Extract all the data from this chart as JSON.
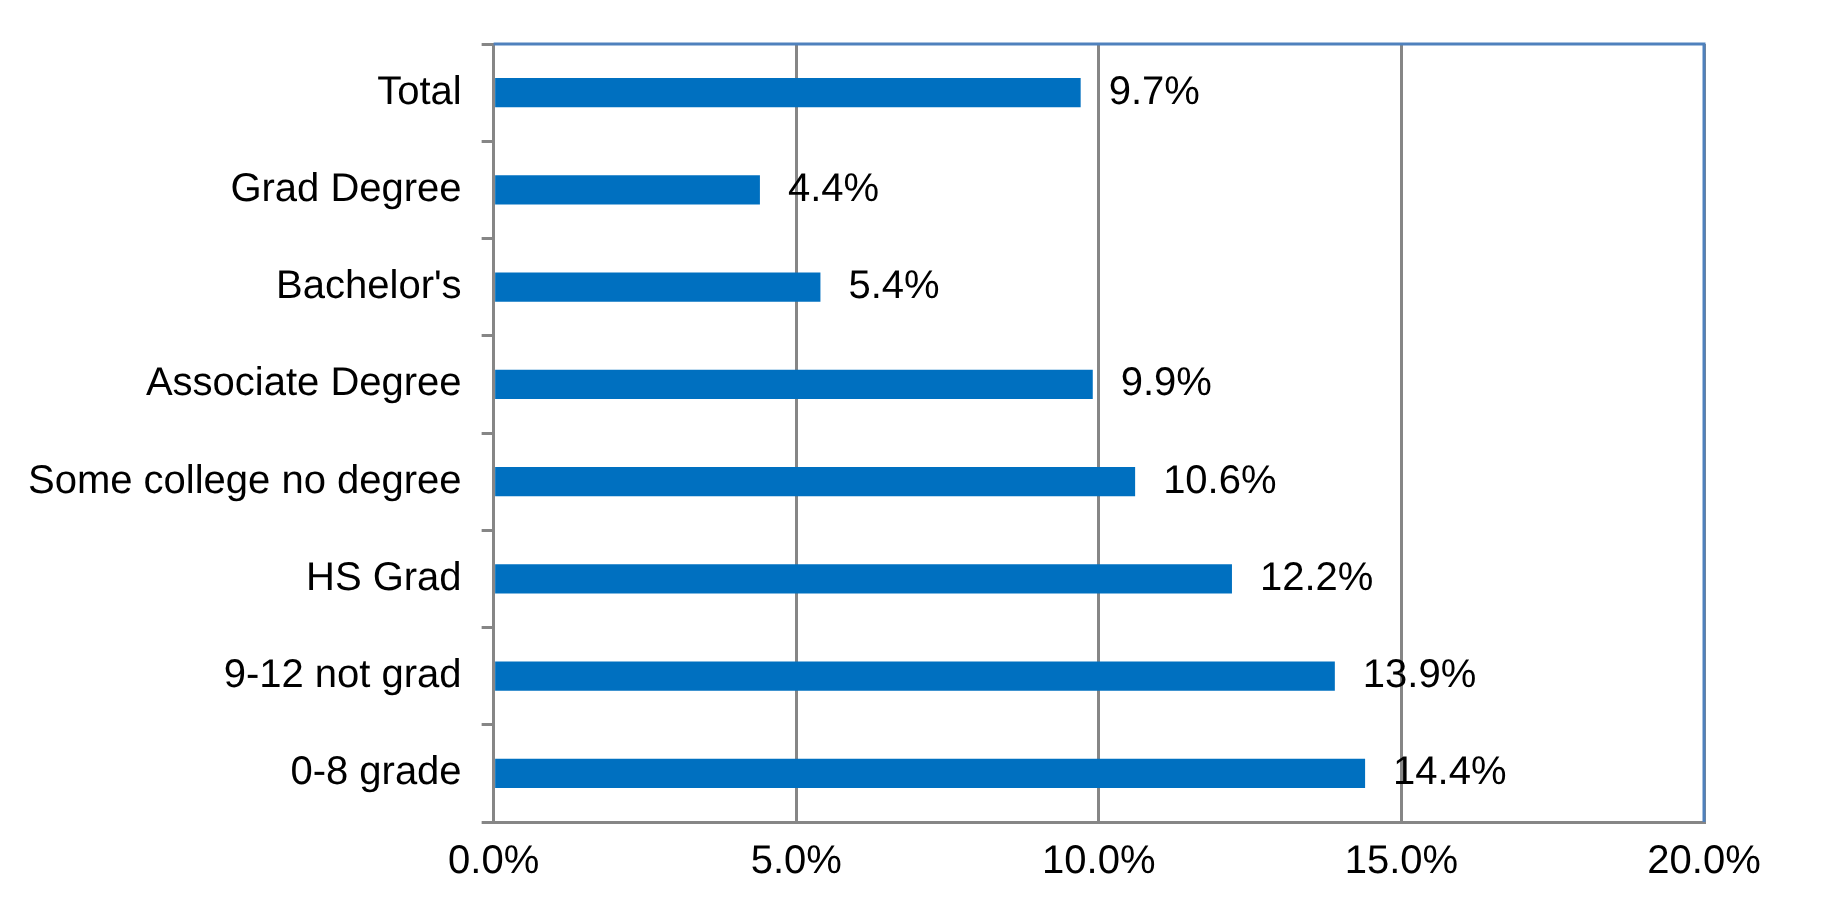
{
  "chart_data": {
    "type": "bar",
    "orientation": "horizontal",
    "categories": [
      "Total",
      "Grad Degree",
      "Bachelor's",
      "Associate Degree",
      "Some college no degree",
      "HS Grad",
      "9-12 not grad",
      "0-8 grade"
    ],
    "values": [
      9.7,
      4.4,
      5.4,
      9.9,
      10.6,
      12.2,
      13.9,
      14.4
    ],
    "value_labels": [
      "9.7%",
      "4.4%",
      "5.4%",
      "9.9%",
      "10.6%",
      "12.2%",
      "13.9%",
      "14.4%"
    ],
    "color": "#0070c0",
    "xlim": [
      0,
      20
    ],
    "xticks": [
      {
        "value": 0,
        "label": "0.0%"
      },
      {
        "value": 5,
        "label": "5.0%"
      },
      {
        "value": 10,
        "label": "10.0%"
      },
      {
        "value": 15,
        "label": "15.0%"
      },
      {
        "value": 20,
        "label": "20.0%"
      }
    ],
    "grid": "x",
    "legend": false
  }
}
